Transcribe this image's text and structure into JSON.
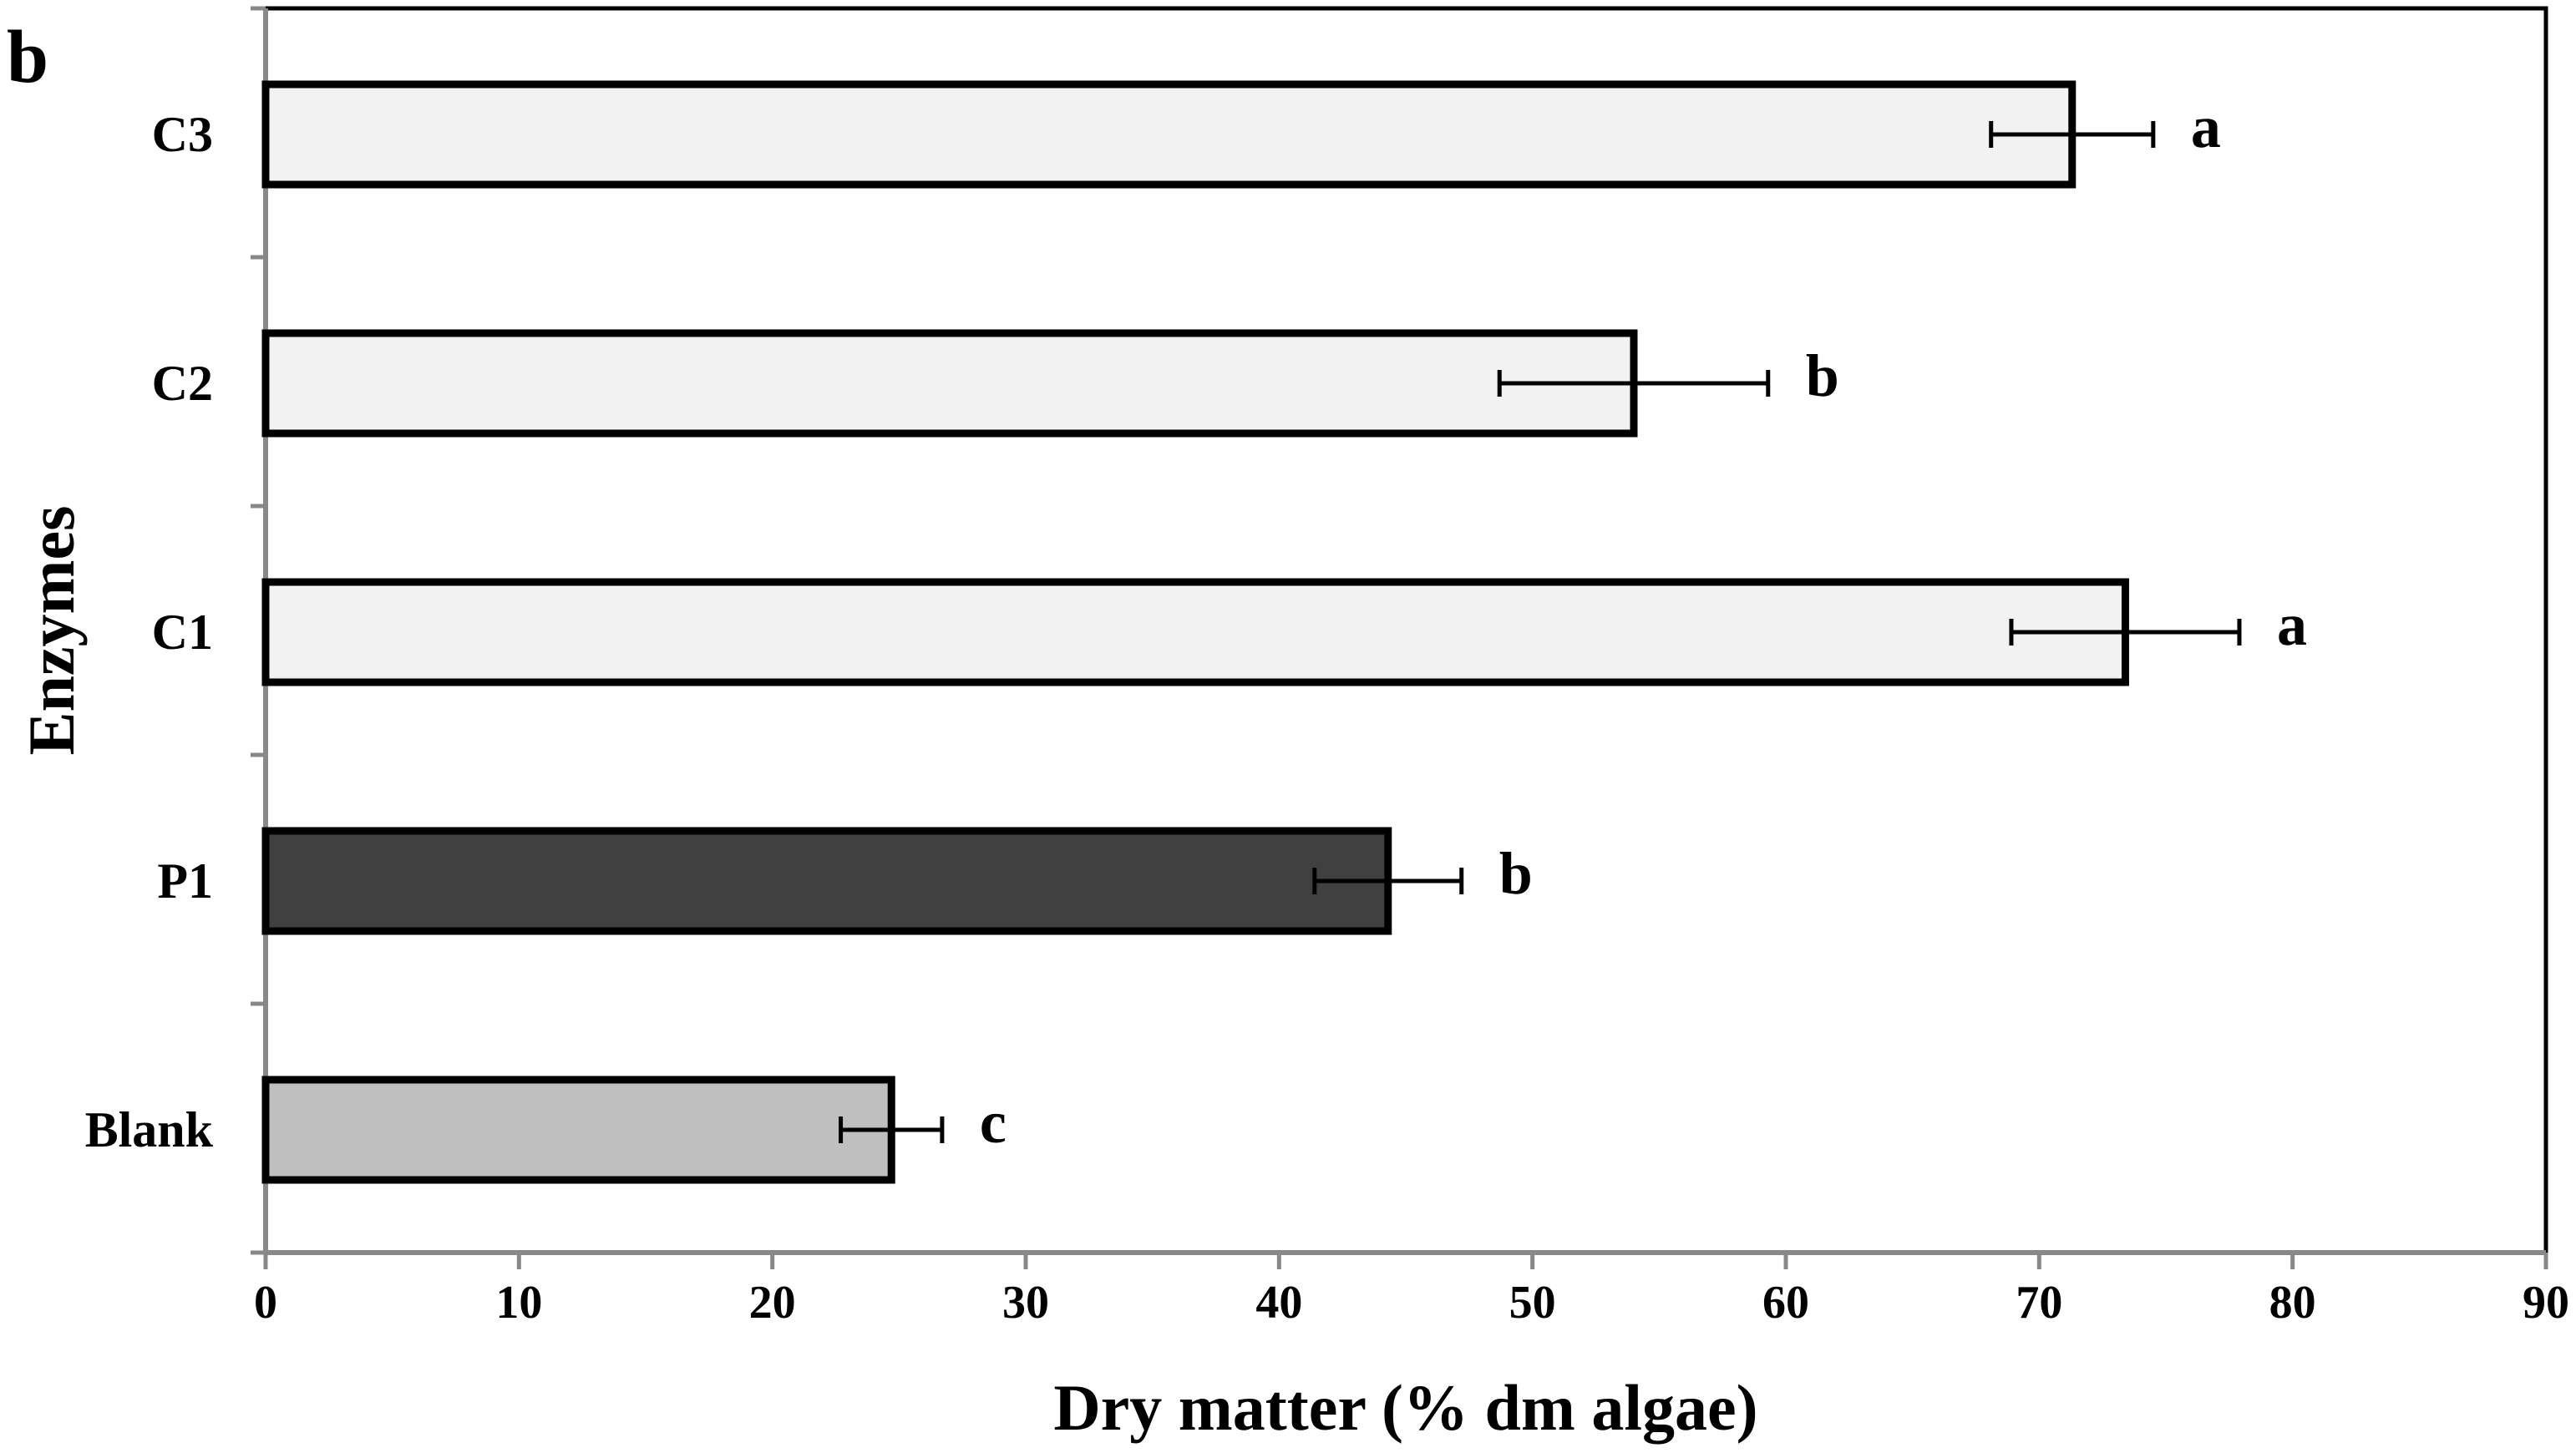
{
  "panel_label": "b",
  "chart_data": {
    "type": "bar",
    "orientation": "horizontal",
    "title": "",
    "xlabel": "Dry matter (% dm algae)",
    "ylabel": "Enzymes",
    "xlim": [
      0,
      90
    ],
    "x_ticks": [
      0,
      10,
      20,
      30,
      40,
      50,
      60,
      70,
      80,
      90
    ],
    "grid": false,
    "categories": [
      "Blank",
      "P1",
      "C1",
      "C2",
      "C3"
    ],
    "values": [
      24.7,
      44.3,
      73.4,
      54.0,
      71.3
    ],
    "errors": [
      2.0,
      2.9,
      4.5,
      5.3,
      3.2
    ],
    "significance_letters": [
      "c",
      "b",
      "a",
      "b",
      "a"
    ],
    "bar_colors": [
      "#bfbfbf",
      "#404040",
      "#f2f2f2",
      "#f2f2f2",
      "#f2f2f2"
    ]
  }
}
